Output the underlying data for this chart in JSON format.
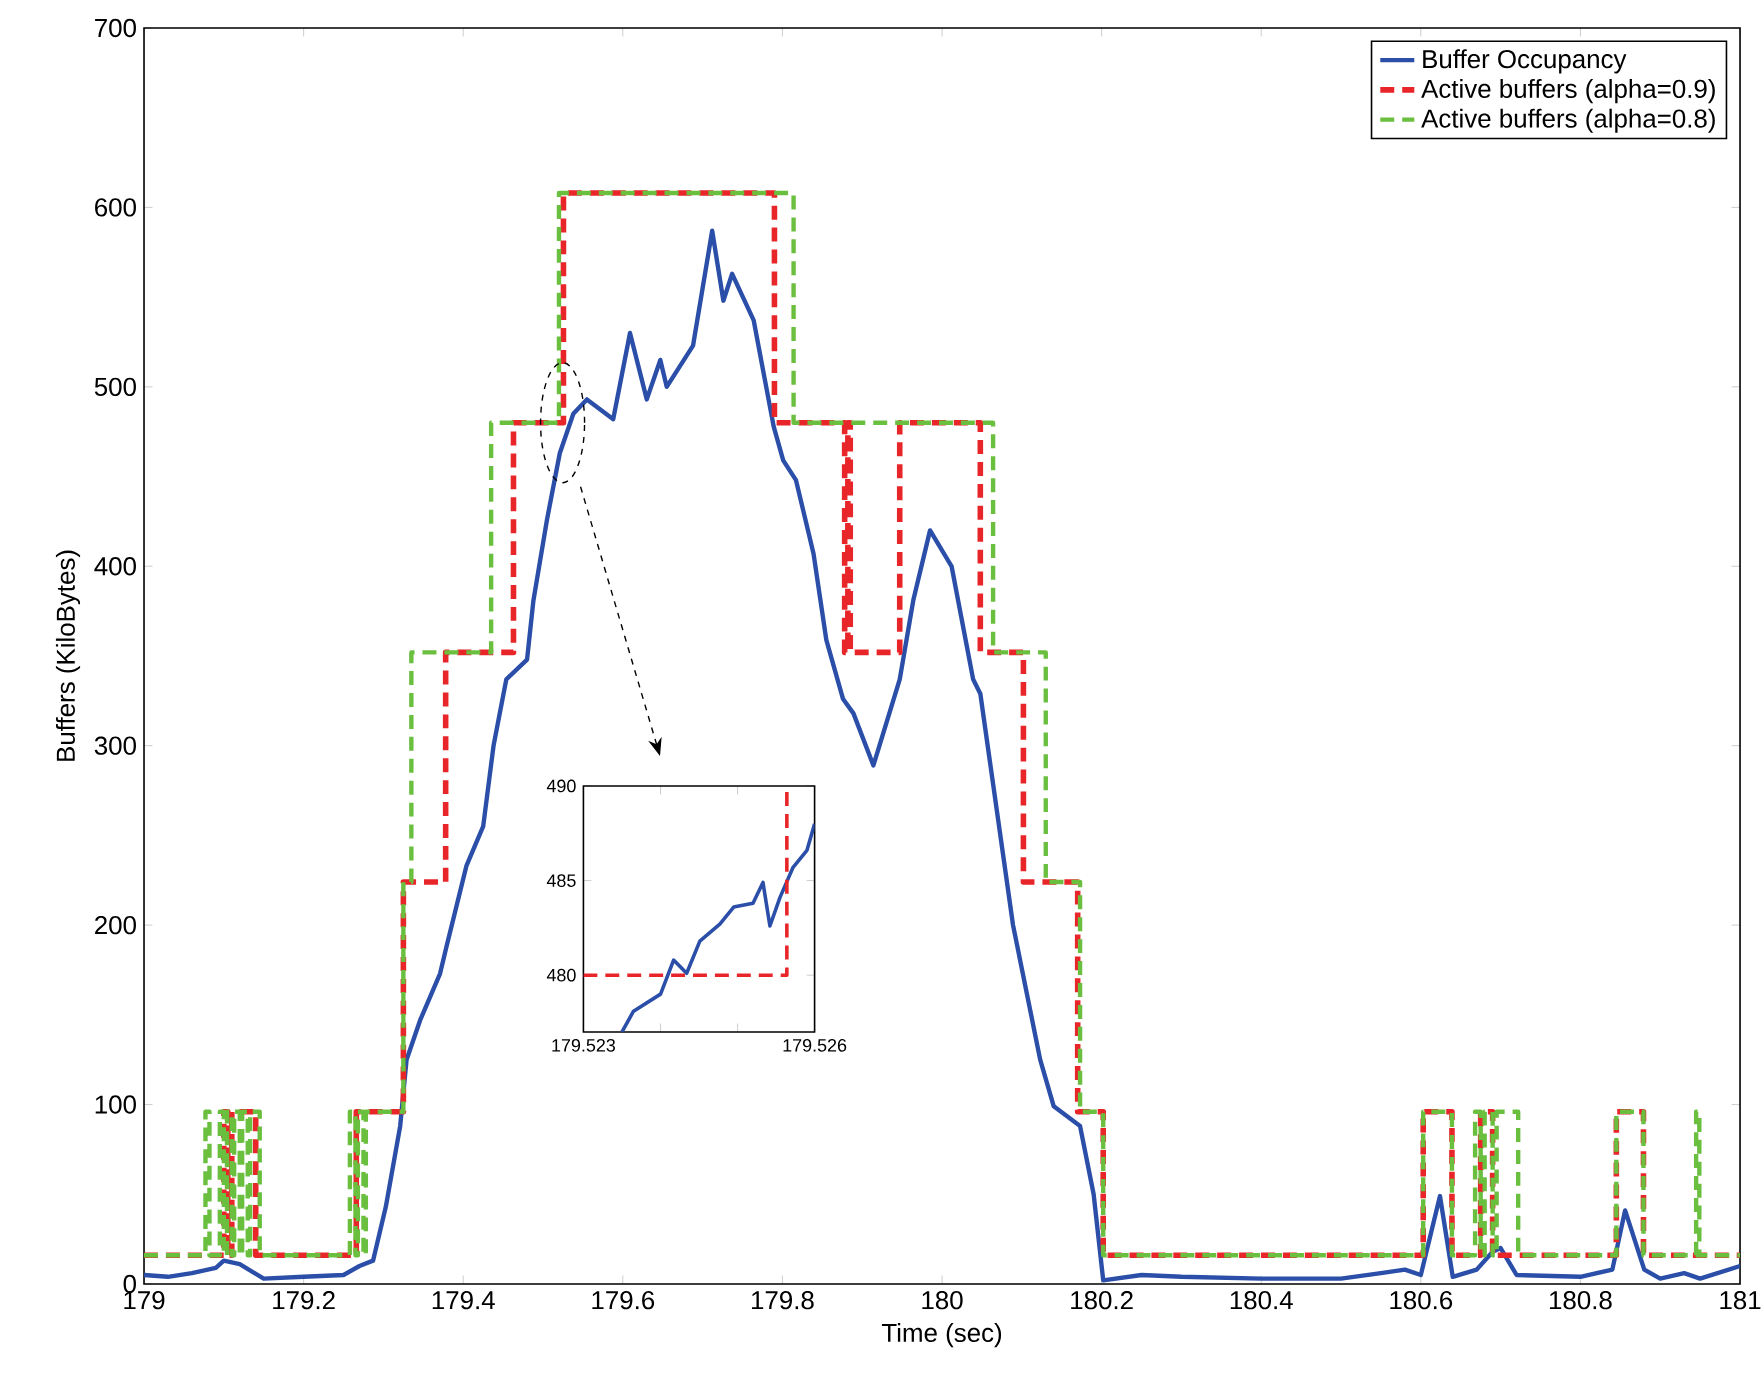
{
  "chart_data": [
    {
      "type": "line",
      "xlabel": "Time (sec)",
      "ylabel": "Buffers (KiloBytes)",
      "xlim": [
        179,
        181
      ],
      "ylim": [
        0,
        700
      ],
      "xticks": [
        179,
        179.2,
        179.4,
        179.6,
        179.8,
        180,
        180.2,
        180.4,
        180.6,
        180.8,
        181
      ],
      "yticks": [
        0,
        100,
        200,
        300,
        400,
        500,
        600,
        700
      ],
      "legend": "top right",
      "grid": false,
      "series": [
        {
          "name": "Buffer Occupancy",
          "type": "line",
          "line_style": "solid",
          "color": "#2b4fa8",
          "x": [
            179,
            179.03,
            179.06,
            179.09,
            179.1,
            179.12,
            179.15,
            179.2,
            179.25,
            179.27,
            179.287,
            179.303,
            179.321,
            179.329,
            179.346,
            179.371,
            179.379,
            179.404,
            179.425,
            179.438,
            179.454,
            179.48,
            179.488,
            179.505,
            179.521,
            179.538,
            179.555,
            179.588,
            179.609,
            179.63,
            179.647,
            179.655,
            179.688,
            179.712,
            179.726,
            179.737,
            179.764,
            179.789,
            179.801,
            179.817,
            179.839,
            179.855,
            179.876,
            179.889,
            179.914,
            179.947,
            179.964,
            179.985,
            180.012,
            180.039,
            180.048,
            180.089,
            180.123,
            180.14,
            180.173,
            180.19,
            180.202,
            180.25,
            180.3,
            180.4,
            180.5,
            180.55,
            180.58,
            180.6,
            180.624,
            180.64,
            180.67,
            180.69,
            180.7,
            180.72,
            180.8,
            180.84,
            180.856,
            180.88,
            180.9,
            180.93,
            180.95,
            181
          ],
          "values": [
            5,
            4,
            6,
            9,
            13,
            11,
            3,
            4,
            5,
            10,
            13,
            43,
            88,
            125,
            147,
            173,
            188,
            233,
            255,
            300,
            337,
            348,
            381,
            426,
            463,
            485,
            493,
            482,
            530,
            493,
            515,
            500,
            523,
            587,
            548,
            563,
            537,
            478,
            459,
            448,
            407,
            359,
            326,
            318,
            289,
            337,
            381,
            420,
            400,
            337,
            329,
            200,
            125,
            99,
            88,
            50,
            2,
            5,
            4,
            3,
            3,
            6,
            8,
            5,
            49,
            4,
            8,
            18,
            20,
            5,
            4,
            8,
            41,
            8,
            3,
            6,
            3,
            10
          ]
        },
        {
          "name": "Active buffers (alpha=0.9)",
          "type": "step",
          "line_style": "dashed",
          "color": "#e8262a",
          "x": [
            179,
            179.1,
            179.105,
            179.11,
            179.14,
            179.266,
            179.325,
            179.378,
            179.463,
            179.5256,
            179.79,
            179.878,
            179.882,
            179.885,
            179.947,
            180.048,
            180.102,
            180.17,
            180.202,
            180.603,
            180.639,
            180.675,
            180.69,
            180.845,
            180.879,
            181
          ],
          "values": [
            16,
            96,
            16,
            96,
            16,
            96,
            224,
            352,
            480,
            608,
            480,
            352,
            480,
            352,
            480,
            352,
            224,
            96,
            16,
            96,
            16,
            96,
            16,
            96,
            16,
            16
          ]
        },
        {
          "name": "Active buffers (alpha=0.8)",
          "type": "step",
          "line_style": "dashed",
          "color": "#6abf3f",
          "x": [
            179,
            179.077,
            179.082,
            179.095,
            179.1,
            179.104,
            179.11,
            179.113,
            179.12,
            179.123,
            179.13,
            179.133,
            179.145,
            179.258,
            179.265,
            179.268,
            179.275,
            179.278,
            179.325,
            179.335,
            179.435,
            179.52,
            179.814,
            180.064,
            180.13,
            180.173,
            180.202,
            180.603,
            180.639,
            180.668,
            180.675,
            180.68,
            180.69,
            180.695,
            180.722,
            180.845,
            180.879,
            180.945,
            180.949,
            181
          ],
          "values": [
            16,
            96,
            16,
            96,
            16,
            96,
            16,
            96,
            16,
            96,
            16,
            96,
            16,
            96,
            16,
            96,
            16,
            96,
            224,
            352,
            480,
            608,
            480,
            352,
            224,
            96,
            16,
            96,
            16,
            96,
            16,
            96,
            16,
            96,
            16,
            96,
            16,
            96,
            16,
            16
          ]
        }
      ]
    },
    {
      "type": "line",
      "xlim": [
        179.523,
        179.526
      ],
      "ylim": [
        477,
        490
      ],
      "xticks": [
        179.523,
        {
          "value": 179.524,
          "label": null
        },
        {
          "value": 179.525,
          "label": null
        },
        179.526
      ],
      "yticks": [
        480,
        485,
        490
      ],
      "grid": false,
      "series": [
        {
          "type": "line",
          "line_style": "solid",
          "color": "#2b4fa8",
          "x": [
            179.5235,
            179.52365,
            179.524,
            179.52417,
            179.52434,
            179.52451,
            179.52477,
            179.52495,
            179.5252,
            179.52533,
            179.52542,
            179.52555,
            179.52572,
            179.5259,
            179.526
          ],
          "values": [
            477.0,
            478.1,
            479.0,
            480.8,
            480.1,
            481.8,
            482.7,
            483.6,
            483.8,
            484.9,
            482.6,
            484.1,
            485.7,
            486.6,
            488.0
          ]
        },
        {
          "type": "step",
          "line_style": "dashed",
          "color": "#e8262a",
          "x": [
            179.523,
            179.52564,
            179.52564
          ],
          "values": [
            480,
            480,
            490
          ]
        }
      ]
    }
  ]
}
